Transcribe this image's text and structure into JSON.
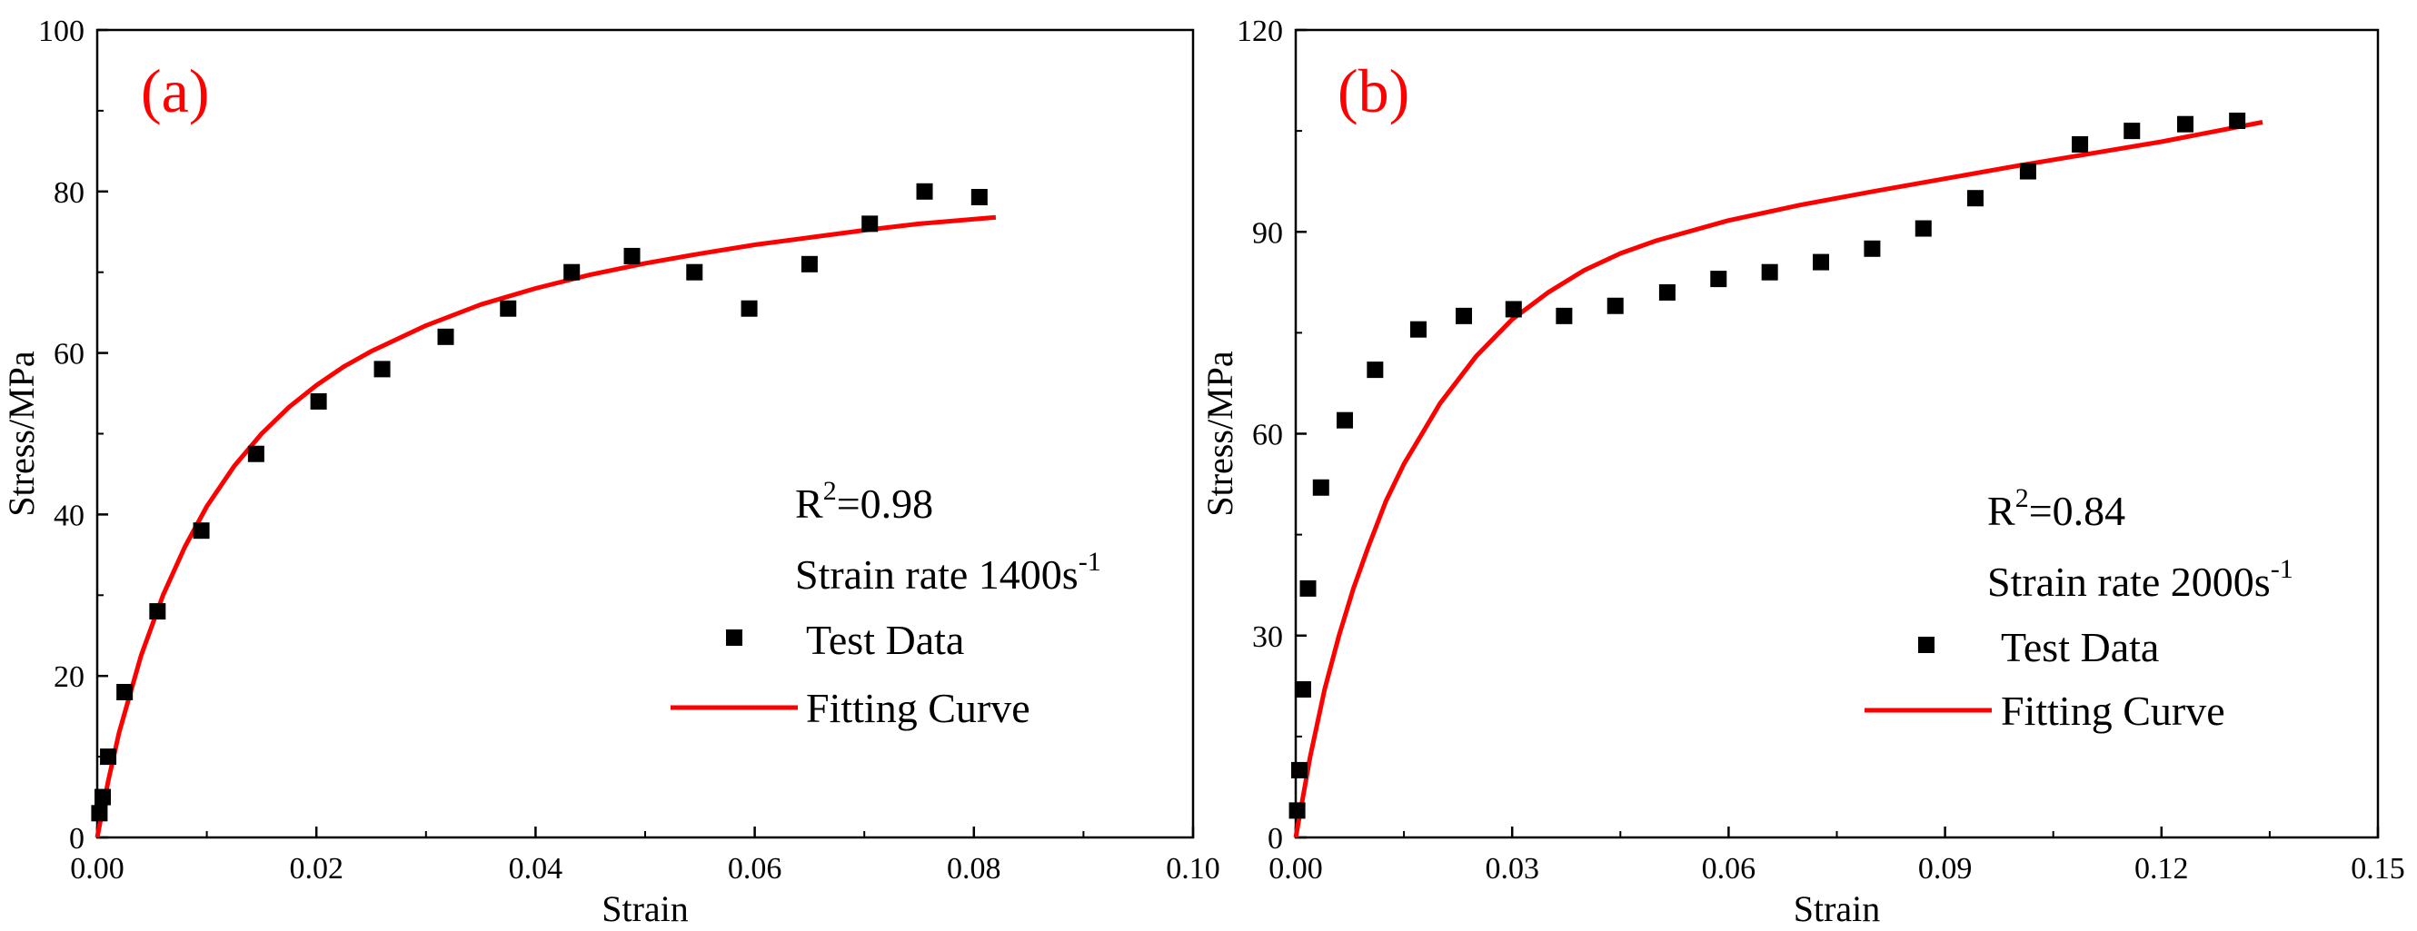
{
  "chart_data": [
    {
      "type": "scatter",
      "panel_label": "(a)",
      "xlabel": "Strain",
      "ylabel": "Stress/MPa",
      "xlim": [
        0,
        0.1
      ],
      "ylim": [
        0,
        100
      ],
      "xticks": [
        0,
        0.02,
        0.04,
        0.06,
        0.08,
        0.1
      ],
      "yticks": [
        0,
        20,
        40,
        60,
        80,
        100
      ],
      "xtick_labels": [
        "0.00",
        "0.02",
        "0.04",
        "0.06",
        "0.08",
        "0.10"
      ],
      "ytick_labels": [
        "0",
        "20",
        "40",
        "60",
        "80",
        "100"
      ],
      "annotation": {
        "r2_prefix": "R",
        "r2_sup": "2",
        "r2_value": "=0.98",
        "rate_text": "Strain rate 1400s",
        "rate_sup": "-1"
      },
      "legend": {
        "test_label": "Test Data",
        "fit_label": "Fitting Curve",
        "position": "right"
      },
      "test_color": "#000000",
      "fit_color": "#ff0000",
      "series": [
        {
          "name": "Test Data",
          "x": [
            0.0002,
            0.0005,
            0.001,
            0.0025,
            0.0055,
            0.0095,
            0.0145,
            0.0202,
            0.026,
            0.0318,
            0.0375,
            0.0433,
            0.0488,
            0.0545,
            0.0595,
            0.065,
            0.0705,
            0.0755,
            0.0805
          ],
          "y": [
            3,
            5,
            10,
            18,
            28,
            38,
            47.5,
            54,
            58,
            62,
            65.5,
            70,
            72,
            70,
            65.5,
            71,
            76,
            80,
            79.3
          ]
        },
        {
          "name": "Fitting Curve",
          "x": [
            0,
            0.001,
            0.002,
            0.004,
            0.006,
            0.008,
            0.01,
            0.0125,
            0.015,
            0.0175,
            0.02,
            0.0225,
            0.025,
            0.03,
            0.035,
            0.04,
            0.045,
            0.05,
            0.055,
            0.06,
            0.065,
            0.07,
            0.075,
            0.082
          ],
          "y": [
            0,
            7,
            13,
            22.5,
            30,
            36,
            41,
            46,
            50,
            53.3,
            56,
            58.3,
            60.2,
            63.4,
            66,
            68,
            69.7,
            71.1,
            72.3,
            73.4,
            74.3,
            75.2,
            76,
            76.8
          ]
        }
      ]
    },
    {
      "type": "scatter",
      "panel_label": "(b)",
      "xlabel": "Strain",
      "ylabel": "Stress/MPa",
      "xlim": [
        0,
        0.15
      ],
      "ylim": [
        0,
        120
      ],
      "xticks": [
        0,
        0.03,
        0.06,
        0.09,
        0.12,
        0.15
      ],
      "yticks": [
        0,
        30,
        60,
        90,
        120
      ],
      "xtick_labels": [
        "0.00",
        "0.03",
        "0.06",
        "0.09",
        "0.12",
        "0.15"
      ],
      "ytick_labels": [
        "0",
        "30",
        "60",
        "90",
        "120"
      ],
      "annotation": {
        "r2_prefix": "R",
        "r2_sup": "2",
        "r2_value": "=0.84",
        "rate_text": "Strain rate 2000s",
        "rate_sup": "-1"
      },
      "legend": {
        "test_label": "Test Data",
        "fit_label": "Fitting Curve",
        "position": "right"
      },
      "test_color": "#000000",
      "fit_color": "#ff0000",
      "series": [
        {
          "name": "Test Data",
          "x": [
            0.0002,
            0.0005,
            0.001,
            0.0017,
            0.0035,
            0.0068,
            0.011,
            0.017,
            0.0233,
            0.0302,
            0.0372,
            0.0443,
            0.0515,
            0.0586,
            0.0657,
            0.0728,
            0.0799,
            0.087,
            0.0942,
            0.1015,
            0.1087,
            0.1159,
            0.1233,
            0.1305
          ],
          "y": [
            4,
            10,
            22,
            37,
            52,
            62,
            69.5,
            75.5,
            77.5,
            78.5,
            77.5,
            79,
            81,
            83,
            84,
            85.5,
            87.5,
            90.5,
            95,
            99,
            103,
            105,
            106,
            106.5
          ]
        },
        {
          "name": "Fitting Curve",
          "x": [
            0,
            0.002,
            0.004,
            0.006,
            0.008,
            0.01,
            0.0125,
            0.015,
            0.0175,
            0.02,
            0.025,
            0.03,
            0.035,
            0.04,
            0.045,
            0.05,
            0.06,
            0.07,
            0.08,
            0.09,
            0.1,
            0.11,
            0.12,
            0.134
          ],
          "y": [
            0,
            12,
            22,
            30,
            37,
            43,
            50,
            55.5,
            60,
            64.5,
            71.5,
            77,
            81,
            84.3,
            86.8,
            88.7,
            91.7,
            94,
            96,
            97.9,
            99.8,
            101.6,
            103.4,
            106.3
          ]
        }
      ]
    }
  ]
}
